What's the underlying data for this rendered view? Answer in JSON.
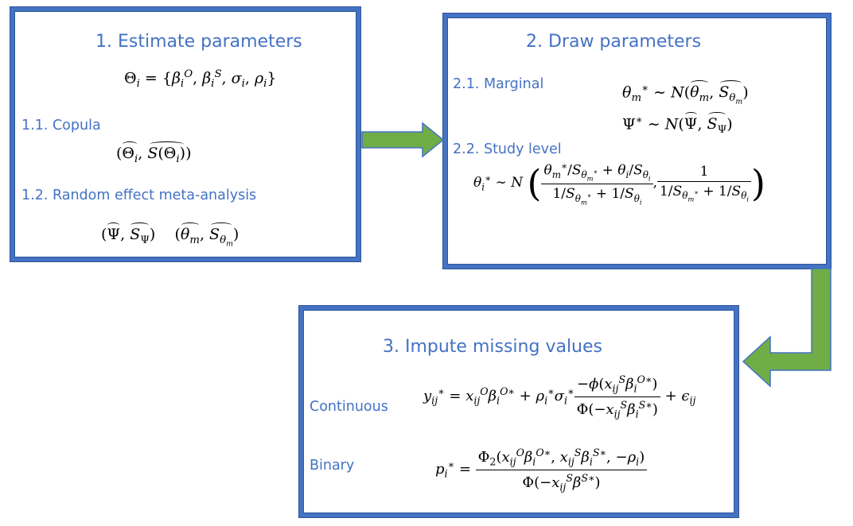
{
  "box1": {
    "title": "1. Estimate parameters",
    "theta_eq": "Θi = {βiO, βiS, σi, ρi}",
    "copula_label": "1.1. Copula",
    "copula_eq": "(Θ̂i, S(Θi)̂)",
    "meta_label": "1.2.  Random effect meta-analysis",
    "meta_eq": "(Ψ̂, ŜΨ)  (θ̂m, Ŝθm)"
  },
  "box2": {
    "title": "2. Draw parameters",
    "marginal_label": "2.1. Marginal",
    "marginal_eq1": "θm* ~ N(θ̂m, Ŝθm)",
    "marginal_eq2": "Ψ* ~ N(Ψ̂, ŜΨ)",
    "study_label": "2.2. Study level",
    "study_eq": "θi* ~ N((θm*/Sθm* + θi/Sθi)/(1/Sθm* + 1/Sθi), 1/(1/Sθm* + 1/Sθi))"
  },
  "box3": {
    "title": "3.  Impute missing values",
    "continuous_label": "Continuous",
    "continuous_eq": "yij* = xijO βiO* + ρi* σi* (−φ(xijS βiO*))/(Φ(−xijS βiS*)) + εij",
    "binary_label": "Binary",
    "binary_eq": "pi* = Φ2(xijO βiO*, xijS βiS*, −ρi)/Φ(−xijS βS*)"
  },
  "colors": {
    "box_border": "#4472c4",
    "heading_text": "#4472c4",
    "arrow_fill": "#70ad47",
    "arrow_stroke": "#4472c4"
  }
}
